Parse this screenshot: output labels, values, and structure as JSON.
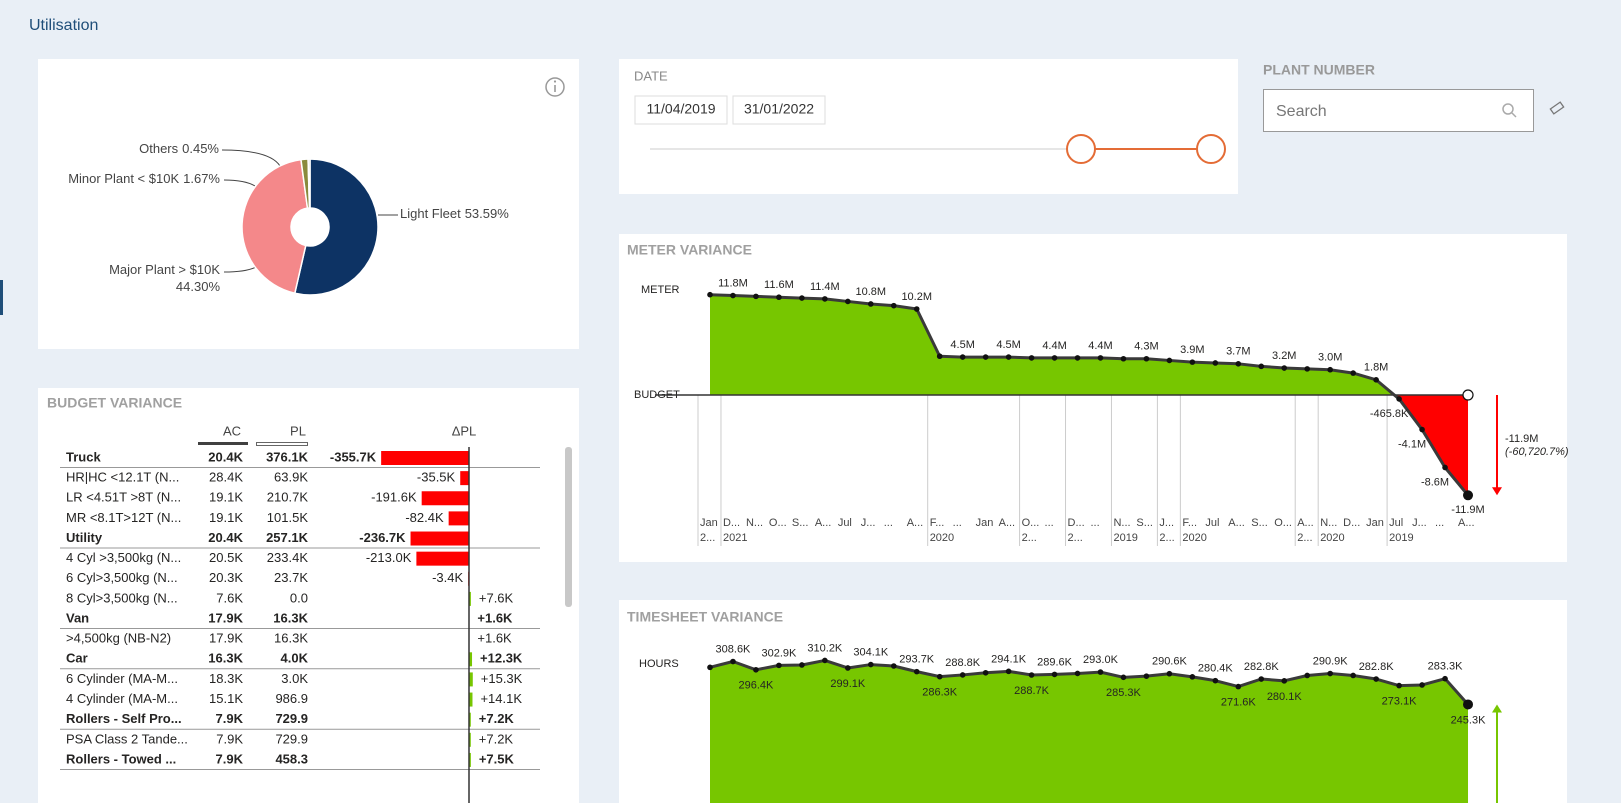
{
  "header": {
    "title": "Utilisation"
  },
  "date_filter": {
    "label": "DATE",
    "start": "11/04/2019",
    "end": "31/01/2022"
  },
  "plant_filter": {
    "label": "PLANT NUMBER",
    "placeholder": "Search"
  },
  "chart_data": [
    {
      "type": "pie",
      "categories": [
        "Light Fleet",
        "Major Plant > $10K",
        "Minor Plant < $10K",
        "Others"
      ],
      "values": [
        53.59,
        44.3,
        1.67,
        0.45
      ],
      "value_labels": [
        "53.59%",
        "44.30%",
        "1.67%",
        "0.45%"
      ],
      "colors": [
        "#0d3364",
        "#f4888a",
        "#8a8a3c",
        "#c8c8c8"
      ]
    },
    {
      "type": "area",
      "title": "METER VARIANCE",
      "y_label": "METER",
      "baseline_label": "BUDGET",
      "categories": [
        "Jan",
        "D...",
        "N...",
        "O...",
        "S...",
        "A...",
        "Jul",
        "J...",
        "...",
        "A...",
        "F...",
        "...",
        "Jan",
        "A...",
        "O...",
        "...",
        "D...",
        "...",
        "N...",
        "S...",
        "J...",
        "F...",
        "Jul",
        "A...",
        "S...",
        "O...",
        "A...",
        "N...",
        "D...",
        "Jan",
        "Jul",
        "J...",
        "...",
        "A..."
      ],
      "x_sublabels": [
        "2...",
        "2021",
        null,
        null,
        null,
        null,
        null,
        null,
        null,
        null,
        "2020",
        null,
        null,
        null,
        "2...",
        null,
        "2...",
        null,
        "2019",
        null,
        "2...",
        "2020",
        null,
        null,
        null,
        null,
        "2...",
        "2020",
        null,
        null,
        "2019",
        null,
        null,
        null
      ],
      "values": [
        11.9,
        11.8,
        11.7,
        11.6,
        11.5,
        11.4,
        11.1,
        10.8,
        10.6,
        10.2,
        4.6,
        4.5,
        4.5,
        4.5,
        4.4,
        4.4,
        4.4,
        4.4,
        4.3,
        4.3,
        4.1,
        3.9,
        3.8,
        3.7,
        3.4,
        3.2,
        3.1,
        3.0,
        2.6,
        1.8,
        -0.4658,
        -4.1,
        -8.6,
        -11.9
      ],
      "value_labels": [
        null,
        "11.8M",
        null,
        "11.6M",
        null,
        "11.4M",
        null,
        "10.8M",
        null,
        "10.2M",
        null,
        "4.5M",
        null,
        "4.5M",
        null,
        "4.4M",
        null,
        "4.4M",
        null,
        "4.3M",
        null,
        "3.9M",
        null,
        "3.7M",
        null,
        "3.2M",
        null,
        "3.0M",
        null,
        "1.8M",
        "-465.8K",
        "-4.1M",
        "-8.6M",
        "-11.9M"
      ],
      "ylim": [
        -14,
        14
      ],
      "color": "#77c600",
      "negative_color": "#ff0000",
      "annotation": {
        "text": "-11.9M",
        "subtext": "(-60,720.7%)"
      }
    },
    {
      "type": "area",
      "title": "TIMESHEET VARIANCE",
      "y_label": "HOURS",
      "values": [
        300,
        308.6,
        296.4,
        302.9,
        303.5,
        310.2,
        299.1,
        304.1,
        302,
        293.7,
        286.3,
        288.8,
        292,
        294.1,
        288.7,
        289.6,
        291,
        293.0,
        285.3,
        287,
        290.6,
        286,
        280.4,
        271.6,
        282.8,
        280.1,
        288,
        290.9,
        288,
        282.8,
        273.1,
        274,
        283.3,
        245.3
      ],
      "value_labels": [
        null,
        "308.6K",
        "296.4K",
        "302.9K",
        null,
        "310.2K",
        "299.1K",
        "304.1K",
        null,
        "293.7K",
        "286.3K",
        "288.8K",
        null,
        "294.1K",
        "288.7K",
        "289.6K",
        null,
        "293.0K",
        "285.3K",
        null,
        "290.6K",
        null,
        "280.4K",
        "271.6K",
        "282.8K",
        "280.1K",
        null,
        "290.9K",
        null,
        "282.8K",
        "273.1K",
        null,
        "283.3K",
        "245.3K"
      ],
      "ylim": [
        100,
        330
      ],
      "color": "#77c600"
    }
  ],
  "budget_table": {
    "title": "BUDGET VARIANCE",
    "columns": [
      "AC",
      "PL",
      "ΔPL"
    ],
    "negative_color": "#ff0000",
    "positive_color": "#77c600",
    "rows": [
      {
        "name": "Truck",
        "ac": "20.4K",
        "pl": "376.1K",
        "delta": -355.7,
        "delta_label": "-355.7K",
        "bold": true
      },
      {
        "name": "HR|HC <12.1T (N...",
        "ac": "28.4K",
        "pl": "63.9K",
        "delta": -35.5,
        "delta_label": "-35.5K",
        "bold": false
      },
      {
        "name": "LR <4.51T >8T (N...",
        "ac": "19.1K",
        "pl": "210.7K",
        "delta": -191.6,
        "delta_label": "-191.6K",
        "bold": false
      },
      {
        "name": "MR <8.1T>12T (N...",
        "ac": "19.1K",
        "pl": "101.5K",
        "delta": -82.4,
        "delta_label": "-82.4K",
        "bold": false
      },
      {
        "name": "Utility",
        "ac": "20.4K",
        "pl": "257.1K",
        "delta": -236.7,
        "delta_label": "-236.7K",
        "bold": true
      },
      {
        "name": "4 Cyl >3,500kg (N...",
        "ac": "20.5K",
        "pl": "233.4K",
        "delta": -213.0,
        "delta_label": "-213.0K",
        "bold": false
      },
      {
        "name": "6 Cyl>3,500kg (N...",
        "ac": "20.3K",
        "pl": "23.7K",
        "delta": -3.4,
        "delta_label": "-3.4K",
        "bold": false
      },
      {
        "name": "8 Cyl>3,500kg (N...",
        "ac": "7.6K",
        "pl": "0.0",
        "delta": 7.6,
        "delta_label": "+7.6K",
        "bold": false
      },
      {
        "name": "Van",
        "ac": "17.9K",
        "pl": "16.3K",
        "delta": 1.6,
        "delta_label": "+1.6K",
        "bold": true
      },
      {
        "name": ">4,500kg (NB-N2)",
        "ac": "17.9K",
        "pl": "16.3K",
        "delta": 1.6,
        "delta_label": "+1.6K",
        "bold": false
      },
      {
        "name": "Car",
        "ac": "16.3K",
        "pl": "4.0K",
        "delta": 12.3,
        "delta_label": "+12.3K",
        "bold": true
      },
      {
        "name": "6 Cylinder (MA-M...",
        "ac": "18.3K",
        "pl": "3.0K",
        "delta": 15.3,
        "delta_label": "+15.3K",
        "bold": false
      },
      {
        "name": "4 Cylinder (MA-M...",
        "ac": "15.1K",
        "pl": "986.9",
        "delta": 14.1,
        "delta_label": "+14.1K",
        "bold": false
      },
      {
        "name": "Rollers - Self Pro...",
        "ac": "7.9K",
        "pl": "729.9",
        "delta": 7.2,
        "delta_label": "+7.2K",
        "bold": true
      },
      {
        "name": "PSA Class 2 Tande...",
        "ac": "7.9K",
        "pl": "729.9",
        "delta": 7.2,
        "delta_label": "+7.2K",
        "bold": false
      },
      {
        "name": "Rollers - Towed ...",
        "ac": "7.9K",
        "pl": "458.3",
        "delta": 7.5,
        "delta_label": "+7.5K",
        "bold": true
      }
    ]
  }
}
